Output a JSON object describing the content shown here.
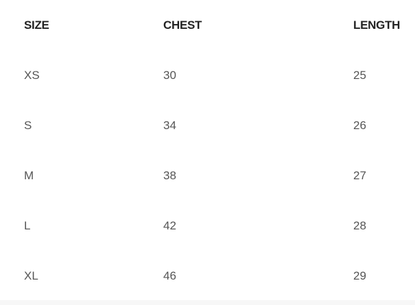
{
  "table": {
    "headers": [
      "SIZE",
      "CHEST",
      "LENGTH"
    ],
    "rows": [
      [
        "XS",
        "30",
        "25"
      ],
      [
        "S",
        "34",
        "26"
      ],
      [
        "M",
        "38",
        "27"
      ],
      [
        "L",
        "42",
        "28"
      ],
      [
        "XL",
        "46",
        "29"
      ]
    ]
  }
}
